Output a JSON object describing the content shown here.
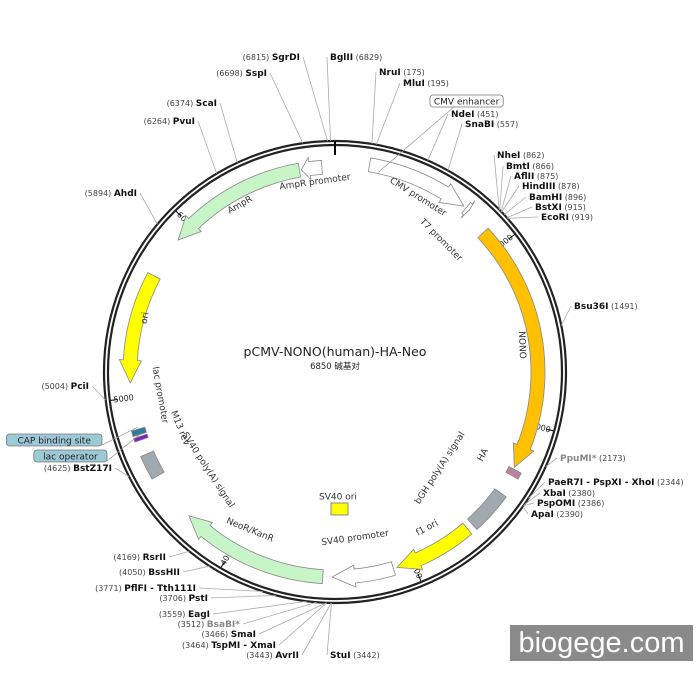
{
  "map": {
    "title": "pCMV-NONO(human)-HA-Neo",
    "size_label": "6850 碱基对",
    "length_bp": 6850,
    "ticks": [
      1000,
      2000,
      3000,
      4000,
      5000,
      6000
    ]
  },
  "features": [
    {
      "label": "CMV promoter",
      "start": 180,
      "end": 720,
      "direction": "cw",
      "color": "#ffffff",
      "shape": "arrow"
    },
    {
      "label": "T7 promoter",
      "start": 735,
      "end": 755,
      "direction": "cw",
      "color": "#ffffff",
      "shape": "arrow"
    },
    {
      "label": "NONO",
      "start": 890,
      "end": 2245,
      "direction": "cw",
      "color": "#ffc000",
      "shape": "arrow"
    },
    {
      "label": "HA",
      "start": 2255,
      "end": 2290,
      "direction": "cw",
      "color": "#c080a0",
      "shape": "box"
    },
    {
      "label": "bGH poly(A) signal",
      "start": 2400,
      "end": 2625,
      "direction": "none",
      "color": "#a0a8b0",
      "shape": "box"
    },
    {
      "label": "f1 ori",
      "start": 2660,
      "end": 3090,
      "direction": "cw",
      "color": "#ffff00",
      "shape": "arrow"
    },
    {
      "label": "SV40 promoter",
      "start": 3110,
      "end": 3440,
      "direction": "cw",
      "color": "#ffffff",
      "shape": "arrow"
    },
    {
      "label": "NeoR/KanR",
      "start": 3490,
      "end": 4290,
      "direction": "cw",
      "color": "#c8f5c8",
      "shape": "arrow"
    },
    {
      "label": "SV40 poly(A) signal",
      "start": 4560,
      "end": 4690,
      "direction": "none",
      "color": "#a0a8b0",
      "shape": "box"
    },
    {
      "label": "M13 rev",
      "start": 4770,
      "end": 4790,
      "direction": "none",
      "color": "#8020c0",
      "shape": "box"
    },
    {
      "label": "lac promoter",
      "start": 4800,
      "end": 4830,
      "direction": "none",
      "color": "#2a7f9a",
      "shape": "box"
    },
    {
      "label": "ori",
      "start": 5080,
      "end": 5670,
      "direction": "ccw",
      "color": "#ffff00",
      "shape": "arrow"
    },
    {
      "label": "AmpR",
      "start": 5900,
      "end": 6660,
      "direction": "ccw",
      "color": "#c8f5c8",
      "shape": "arrow"
    },
    {
      "label": "AmpR promoter",
      "start": 6670,
      "end": 6780,
      "direction": "ccw",
      "color": "#ffffff",
      "shape": "arrow"
    },
    {
      "label": "SV40 ori",
      "start": 3390,
      "end": 3440,
      "direction": "none",
      "color": "#ffff00",
      "shape": "inner-box"
    }
  ],
  "boxed_labels": [
    {
      "label": "CMV enhancer",
      "position": 235,
      "color": "#ffffff"
    },
    {
      "label": "CAP binding site",
      "position": 4840,
      "color": "#9cc9d6"
    },
    {
      "label": "lac operator",
      "position": 4800,
      "color": "#9cc9d6"
    }
  ],
  "sites": [
    {
      "name": "SgrDI",
      "pos": 6815,
      "muted": false
    },
    {
      "name": "BglII",
      "pos": 6829,
      "muted": false
    },
    {
      "name": "SspI",
      "pos": 6698,
      "muted": false
    },
    {
      "name": "ScaI",
      "pos": 6374,
      "muted": false
    },
    {
      "name": "PvuI",
      "pos": 6264,
      "muted": false
    },
    {
      "name": "AhdI",
      "pos": 5894,
      "muted": false
    },
    {
      "name": "NruI",
      "pos": 175,
      "muted": false
    },
    {
      "name": "MluI",
      "pos": 195,
      "muted": false
    },
    {
      "name": "NdeI",
      "pos": 451,
      "muted": false
    },
    {
      "name": "SnaBI",
      "pos": 557,
      "muted": false
    },
    {
      "name": "NheI",
      "pos": 862,
      "muted": false
    },
    {
      "name": "BmtI",
      "pos": 866,
      "muted": false
    },
    {
      "name": "AflII",
      "pos": 875,
      "muted": false
    },
    {
      "name": "HindIII",
      "pos": 878,
      "muted": false
    },
    {
      "name": "BamHI",
      "pos": 896,
      "muted": false
    },
    {
      "name": "BstXI",
      "pos": 915,
      "muted": false
    },
    {
      "name": "EcoRI",
      "pos": 919,
      "muted": false
    },
    {
      "name": "Bsu36I",
      "pos": 1491,
      "muted": false
    },
    {
      "name": "PpuMI*",
      "pos": 2173,
      "muted": true
    },
    {
      "name": "PaeR7I - PspXI - XhoI",
      "pos": 2344,
      "muted": false
    },
    {
      "name": "XbaI",
      "pos": 2380,
      "muted": false
    },
    {
      "name": "PspOMI",
      "pos": 2386,
      "muted": false
    },
    {
      "name": "ApaI",
      "pos": 2390,
      "muted": false
    },
    {
      "name": "StuI",
      "pos": 3442,
      "muted": false
    },
    {
      "name": "AvrII",
      "pos": 3443,
      "muted": false
    },
    {
      "name": "TspMI - XmaI",
      "pos": 3464,
      "muted": false
    },
    {
      "name": "SmaI",
      "pos": 3466,
      "muted": false
    },
    {
      "name": "BsaBI*",
      "pos": 3512,
      "muted": true
    },
    {
      "name": "EagI",
      "pos": 3559,
      "muted": false
    },
    {
      "name": "PstI",
      "pos": 3706,
      "muted": false
    },
    {
      "name": "PflFI - Tth111I",
      "pos": 3771,
      "muted": false
    },
    {
      "name": "BssHII",
      "pos": 4050,
      "muted": false
    },
    {
      "name": "RsrII",
      "pos": 4169,
      "muted": false
    },
    {
      "name": "BstZ17I",
      "pos": 4625,
      "muted": false
    },
    {
      "name": "PciI",
      "pos": 5004,
      "muted": false
    }
  ],
  "watermark": "biogege.com"
}
